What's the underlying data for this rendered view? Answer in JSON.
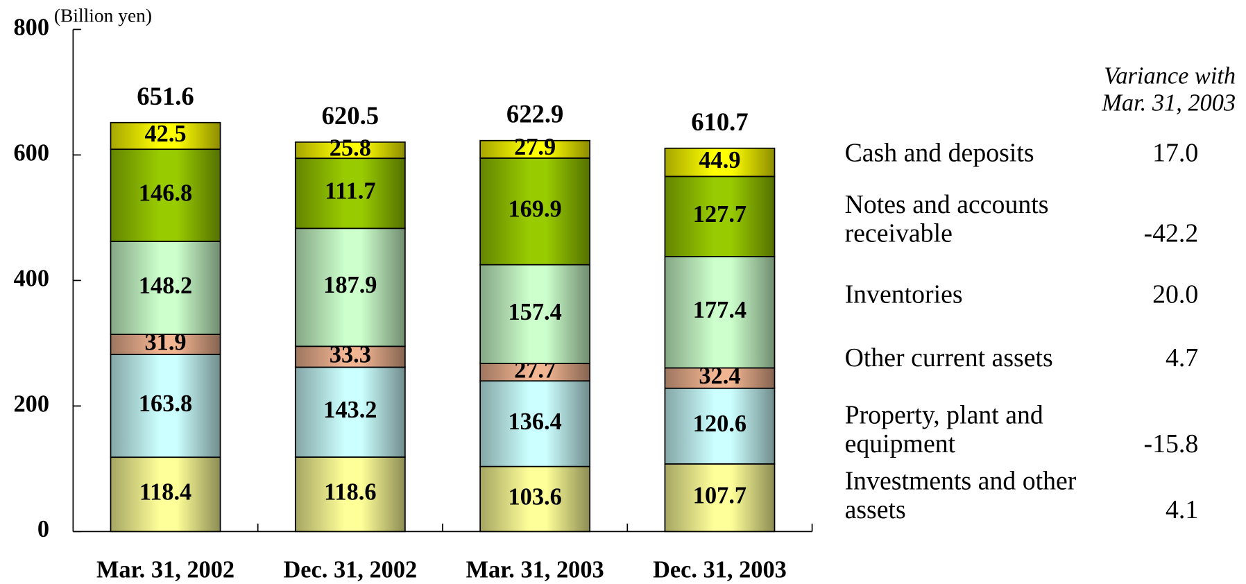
{
  "chart_data": {
    "type": "stacked-bar",
    "y_label": "(Billion yen)",
    "categories": [
      "Mar. 31, 2002",
      "Dec. 31, 2002",
      "Mar. 31, 2003",
      "Dec. 31, 2003"
    ],
    "series": [
      {
        "name": "Investments and other assets",
        "color": "#ffff99",
        "values": [
          118.4,
          118.6,
          103.6,
          107.7
        ]
      },
      {
        "name": "Property, plant and equipment",
        "color": "#ccffff",
        "values": [
          163.8,
          143.2,
          136.4,
          120.6
        ]
      },
      {
        "name": "Other current assets",
        "color": "#f2b592",
        "values": [
          31.9,
          33.3,
          27.7,
          32.4
        ]
      },
      {
        "name": "Inventories",
        "color": "#ccffcc",
        "values": [
          148.2,
          187.9,
          157.4,
          177.4
        ]
      },
      {
        "name": "Notes and accounts receivable",
        "color": "#99cc00",
        "values": [
          146.8,
          111.7,
          169.9,
          127.7
        ]
      },
      {
        "name": "Cash and deposits",
        "color": "#ffff00",
        "values": [
          42.5,
          25.8,
          27.9,
          44.9
        ]
      }
    ],
    "totals": [
      651.6,
      620.5,
      622.9,
      610.7
    ],
    "variance_title": "Variance with Mar. 31, 2003",
    "variance": {
      "values": [
        4.1,
        -15.8,
        4.7,
        20.0,
        -42.2,
        17.0
      ],
      "value_labels": [
        "4.1",
        "-15.8",
        "4.7",
        "20.0",
        "-42.2",
        "17.0"
      ]
    },
    "ylim": [
      0,
      800
    ],
    "yticks": [
      0,
      200,
      400,
      600,
      800
    ]
  }
}
